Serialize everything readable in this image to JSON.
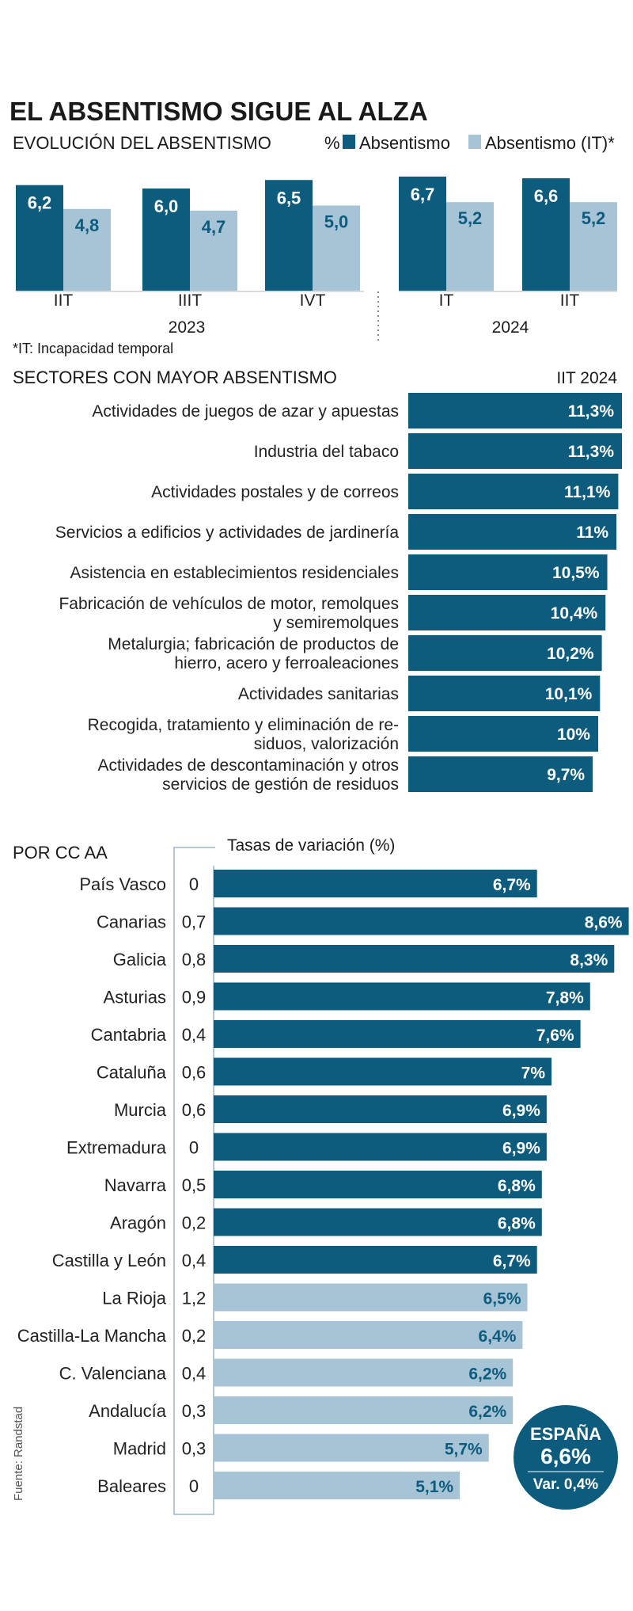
{
  "title": "EL ABSENTISMO SIGUE AL ALZA",
  "colors": {
    "dark": "#0d5c7e",
    "light": "#a7c3d6",
    "ink": "#222222",
    "axis": "#bbbbbb"
  },
  "source": "Fuente: Randstad",
  "chart_data": [
    {
      "type": "bar",
      "title": "EVOLUCIÓN DEL ABSENTISMO",
      "legend_prefix": "%",
      "unit": "%",
      "categories": [
        "IIT",
        "IIIT",
        "IVT",
        "IT",
        "IIT"
      ],
      "groups": [
        {
          "label": "2023",
          "categories": [
            "IIT",
            "IIIT",
            "IVT"
          ]
        },
        {
          "label": "2024",
          "categories": [
            "IT",
            "IIT"
          ]
        }
      ],
      "series": [
        {
          "name": "Absentismo",
          "color": "#0d5c7e",
          "values": [
            6.2,
            6.0,
            6.5,
            6.7,
            6.6
          ],
          "labels": [
            "6,2",
            "6,0",
            "6,5",
            "6,7",
            "6,6"
          ]
        },
        {
          "name": "Absentismo (IT)*",
          "color": "#a7c3d6",
          "values": [
            4.8,
            4.7,
            5.0,
            5.2,
            5.2
          ],
          "labels": [
            "4,8",
            "4,7",
            "5,0",
            "5,2",
            "5,2"
          ]
        }
      ],
      "footnote": "*IT: Incapacidad temporal"
    },
    {
      "type": "bar",
      "orientation": "horizontal",
      "title": "SECTORES CON MAYOR ABSENTISMO",
      "column_header": "IIT 2024",
      "categories": [
        [
          "Actividades de juegos de azar y apuestas"
        ],
        [
          "Industria del tabaco"
        ],
        [
          "Actividades postales y de correos"
        ],
        [
          "Servicios a edificios y actividades de jardinería"
        ],
        [
          "Asistencia en establecimientos residenciales"
        ],
        [
          "Fabricación de vehículos de motor, remolques",
          "y semiremolques"
        ],
        [
          "Metalurgia; fabricación de productos de",
          "hierro, acero y ferroaleaciones"
        ],
        [
          "Actividades sanitarias"
        ],
        [
          "Recogida, tratamiento y eliminación de re-",
          "siduos, valorización"
        ],
        [
          "Actividades de descontaminación y otros",
          "servicios de gestión de residuos"
        ]
      ],
      "values": [
        11.3,
        11.3,
        11.1,
        11.0,
        10.5,
        10.4,
        10.2,
        10.1,
        10.0,
        9.7
      ],
      "labels": [
        "11,3%",
        "11,3%",
        "11,1%",
        "11%",
        "10,5%",
        "10,4%",
        "10,2%",
        "10,1%",
        "10%",
        "9,7%"
      ]
    },
    {
      "type": "bar",
      "orientation": "horizontal",
      "title": "POR CC AA",
      "variation_header": "Tasas de variación (%)",
      "categories": [
        "País Vasco",
        "Canarias",
        "Galicia",
        "Asturias",
        "Cantabria",
        "Cataluña",
        "Murcia",
        "Extremadura",
        "Navarra",
        "Aragón",
        "Castilla y León",
        "La Rioja",
        "Castilla-La Mancha",
        "C. Valenciana",
        "Andalucía",
        "Madrid",
        "Baleares"
      ],
      "values": [
        6.7,
        8.6,
        8.3,
        7.8,
        7.6,
        7.0,
        6.9,
        6.9,
        6.8,
        6.8,
        6.7,
        6.5,
        6.4,
        6.2,
        6.2,
        5.7,
        5.1
      ],
      "labels": [
        "6,7%",
        "8,6%",
        "8,3%",
        "7,8%",
        "7,6%",
        "7%",
        "6,9%",
        "6,9%",
        "6,8%",
        "6,8%",
        "6,7%",
        "6,5%",
        "6,4%",
        "6,2%",
        "6,2%",
        "5,7%",
        "5,1%"
      ],
      "variation": [
        "0",
        "0,7",
        "0,8",
        "0,9",
        "0,4",
        "0,6",
        "0,6",
        "0",
        "0,5",
        "0,2",
        "0,4",
        "1,2",
        "0,2",
        "0,4",
        "0,3",
        "0,3",
        "0"
      ],
      "highlight": [
        "dark",
        "dark",
        "dark",
        "dark",
        "dark",
        "dark",
        "dark",
        "dark",
        "dark",
        "dark",
        "dark",
        "light",
        "light",
        "light",
        "light",
        "light",
        "light"
      ],
      "badge": {
        "title": "ESPAÑA",
        "value": "6,6%",
        "variation": "Var. 0,4%"
      }
    }
  ]
}
